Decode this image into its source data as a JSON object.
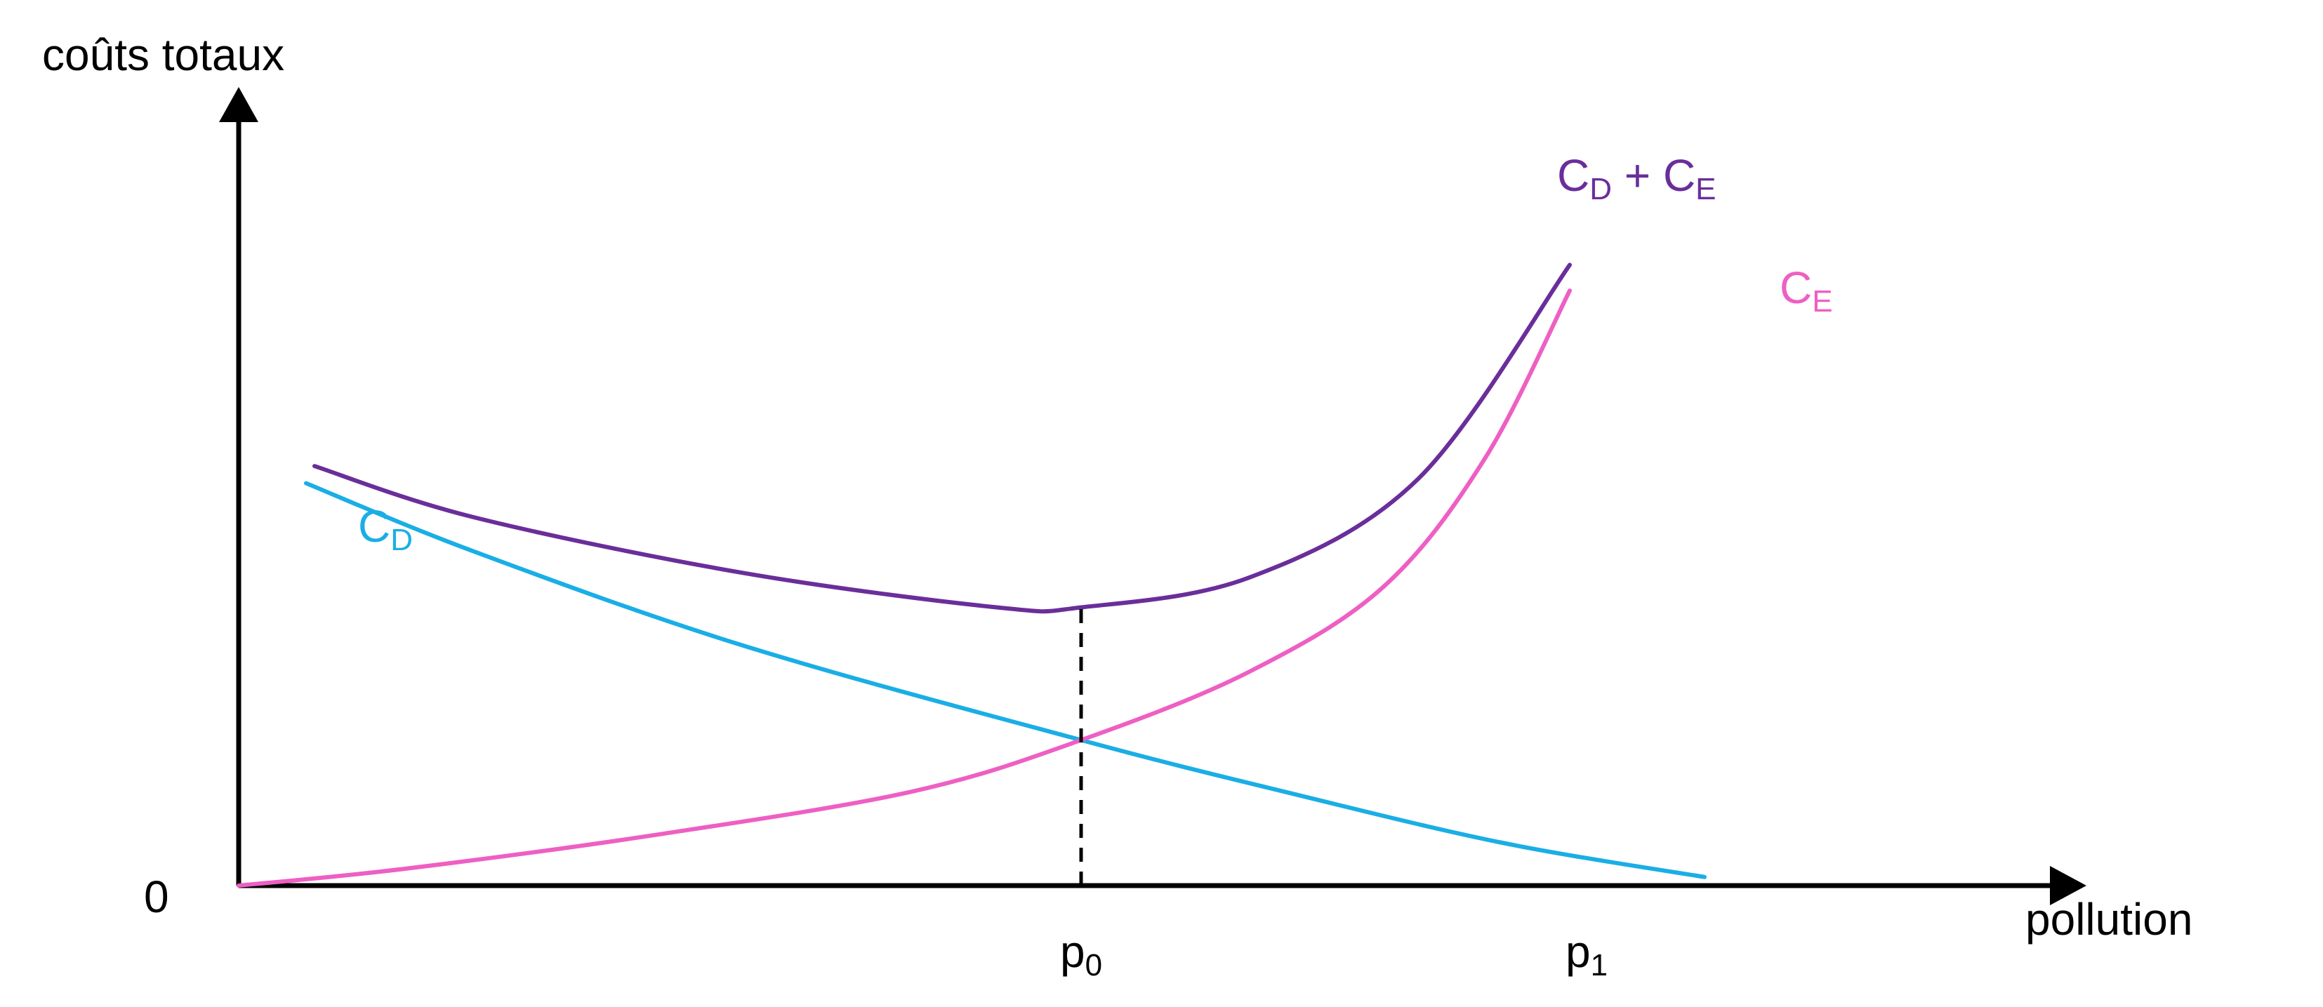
{
  "chart_data": {
    "type": "line",
    "title": "",
    "ylabel": "coûts totaux",
    "xlabel": "pollution",
    "origin_label": "0",
    "x_ticks": [
      {
        "label_main": "p",
        "label_sub": "0",
        "x": 0.5
      },
      {
        "label_main": "p",
        "label_sub": "1",
        "x": 0.8
      }
    ],
    "xlim": [
      0,
      1
    ],
    "ylim": [
      0,
      1
    ],
    "grid": false,
    "legend": "none",
    "series": [
      {
        "name_main": "C",
        "name_sub": "D",
        "name_extra": "",
        "color": "#1aaee5",
        "points": [
          [
            0.04,
            0.94
          ],
          [
            0.14,
            0.78
          ],
          [
            0.3,
            0.56
          ],
          [
            0.5,
            0.34
          ],
          [
            0.62,
            0.22
          ],
          [
            0.75,
            0.1
          ],
          [
            0.87,
            0.02
          ]
        ]
      },
      {
        "name_main": "C",
        "name_sub": "E",
        "name_extra": "",
        "color": "#ee5fc3",
        "points": [
          [
            0.0,
            0.0
          ],
          [
            0.1,
            0.04
          ],
          [
            0.25,
            0.12
          ],
          [
            0.4,
            0.22
          ],
          [
            0.5,
            0.34
          ],
          [
            0.6,
            0.5
          ],
          [
            0.68,
            0.7
          ],
          [
            0.74,
            1.0
          ],
          [
            0.79,
            1.39
          ]
        ]
      },
      {
        "name_main": "C",
        "name_sub": "D",
        "name_extra": " + C",
        "name_sub2": "E",
        "color": "#6a2e9a",
        "points": [
          [
            0.045,
            0.98
          ],
          [
            0.14,
            0.86
          ],
          [
            0.3,
            0.73
          ],
          [
            0.45,
            0.65
          ],
          [
            0.5,
            0.65
          ],
          [
            0.6,
            0.72
          ],
          [
            0.7,
            0.95
          ],
          [
            0.79,
            1.45
          ]
        ]
      }
    ],
    "annotation_dashed_x": 0.5,
    "axis_color": "#000000"
  }
}
